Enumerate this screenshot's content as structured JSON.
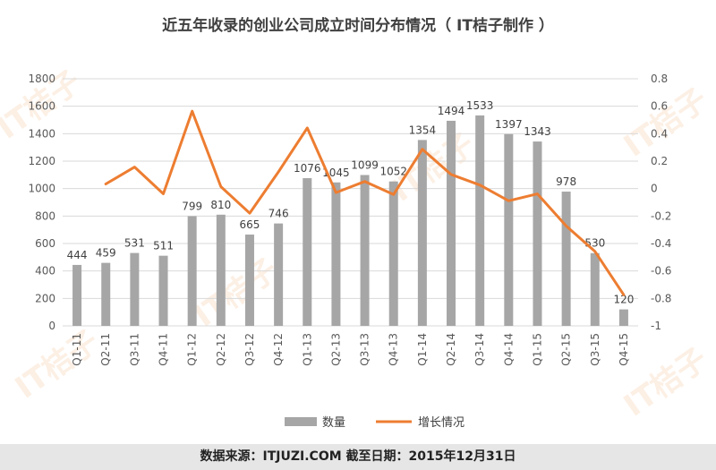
{
  "title": "近五年收录的创业公司成立时间分布情况（ IT桔子制作 ）",
  "footer": "数据来源：ITJUZI.COM  截至日期：2015年12月31日",
  "watermark": "IT桔子",
  "colors": {
    "bar": "#a6a6a6",
    "line": "#ed7d31",
    "grid": "#d9d9d9",
    "text": "#595959"
  },
  "chart_data": {
    "type": "bar",
    "categories": [
      "Q1-11",
      "Q2-11",
      "Q3-11",
      "Q4-11",
      "Q1-12",
      "Q2-12",
      "Q3-12",
      "Q4-12",
      "Q1-13",
      "Q2-13",
      "Q3-13",
      "Q4-13",
      "Q1-14",
      "Q2-14",
      "Q3-14",
      "Q4-14",
      "Q1-15",
      "Q2-15",
      "Q3-15",
      "Q4-15"
    ],
    "series": [
      {
        "name": "数量",
        "type": "bar",
        "axis": "left",
        "values": [
          444,
          459,
          531,
          511,
          799,
          810,
          665,
          746,
          1076,
          1045,
          1099,
          1052,
          1354,
          1494,
          1533,
          1397,
          1343,
          978,
          530,
          120
        ]
      },
      {
        "name": "增长情况",
        "type": "line",
        "axis": "right",
        "values": [
          null,
          0.034,
          0.157,
          -0.038,
          0.564,
          0.014,
          -0.179,
          0.122,
          0.442,
          -0.029,
          0.052,
          -0.043,
          0.287,
          0.103,
          0.026,
          -0.089,
          -0.039,
          -0.272,
          -0.458,
          -0.774
        ]
      }
    ],
    "y_left": {
      "min": 0,
      "max": 1800,
      "ticks": [
        "0",
        "200",
        "400",
        "600",
        "800",
        "1000",
        "1200",
        "1400",
        "1600",
        "1800"
      ]
    },
    "y_right": {
      "min": -1,
      "max": 0.8,
      "ticks": [
        "-1",
        "-0.8",
        "-0.6",
        "-0.4",
        "-0.2",
        "0",
        "0.2",
        "0.4",
        "0.6",
        "0.8"
      ]
    },
    "legend": {
      "bar": "数量",
      "line": "增长情况",
      "position": "bottom"
    }
  }
}
